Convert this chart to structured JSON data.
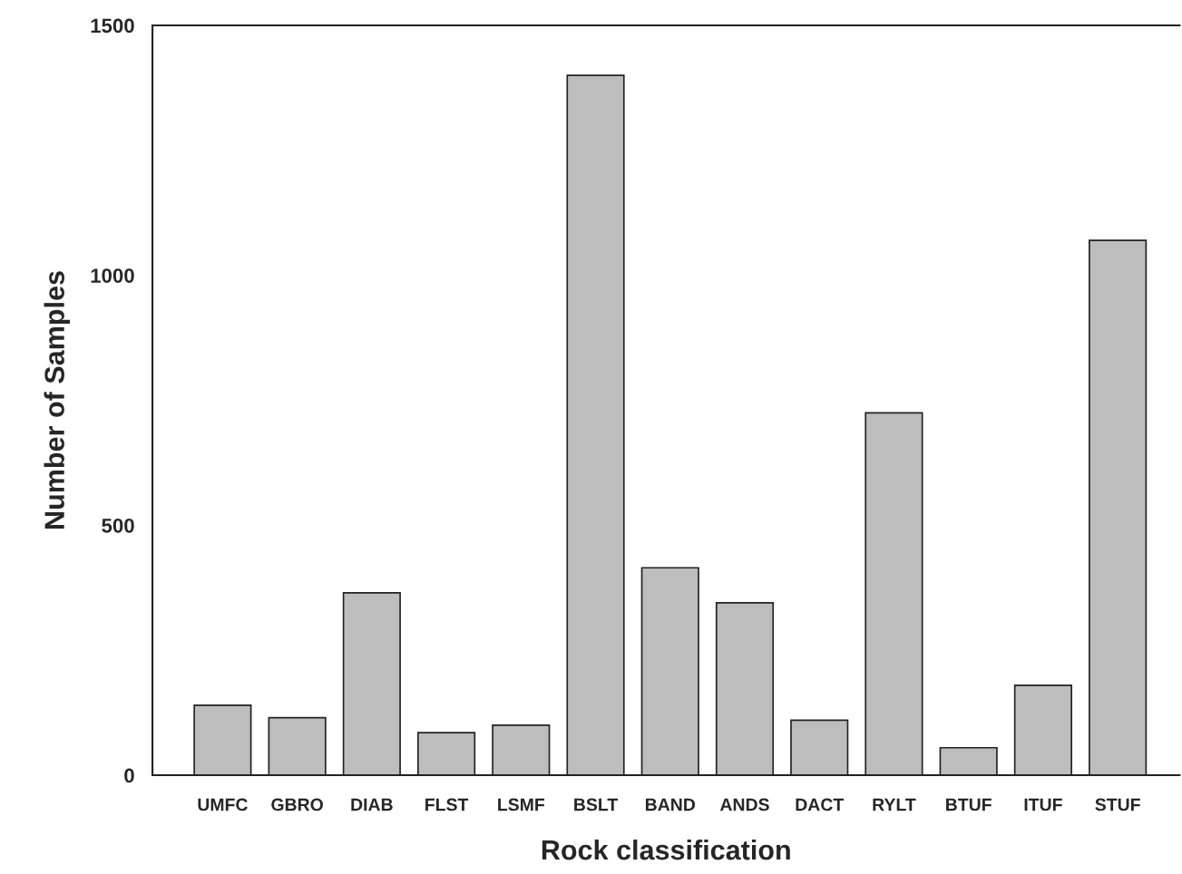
{
  "chart_data": {
    "type": "bar",
    "xlabel": "Rock classification",
    "ylabel": "Number of Samples",
    "categories": [
      "UMFC",
      "GBRO",
      "DIAB",
      "FLST",
      "LSMF",
      "BSLT",
      "BAND",
      "ANDS",
      "DACT",
      "RYLT",
      "BTUF",
      "ITUF",
      "STUF"
    ],
    "values": [
      140,
      115,
      365,
      85,
      100,
      1400,
      415,
      345,
      110,
      725,
      55,
      180,
      1070
    ],
    "color": "#bdbdbd",
    "ylim": [
      0,
      1500
    ],
    "yticks": [
      0,
      500,
      1000,
      1500
    ],
    "grid": false
  }
}
